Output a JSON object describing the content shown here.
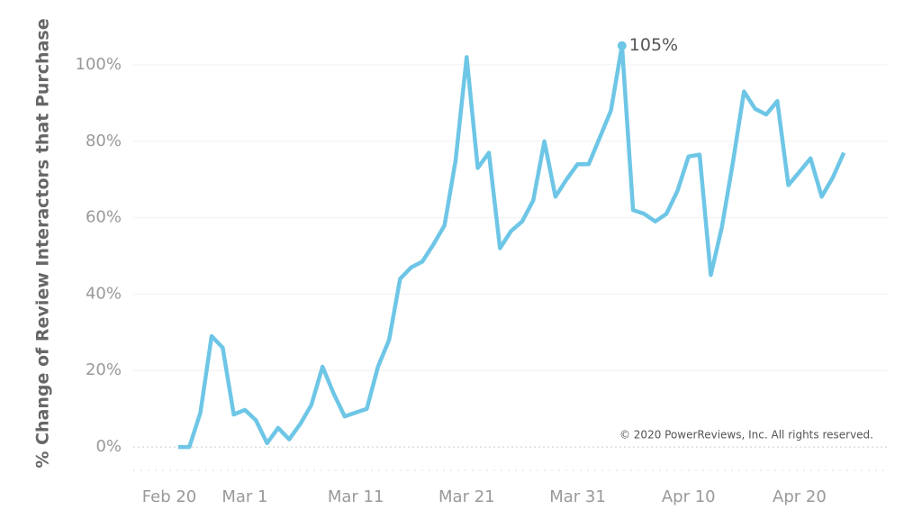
{
  "chart_data": {
    "type": "line",
    "y_label": "% Change of Review Interactors that Purchase",
    "note": "© 2020 PowerReviews, Inc. All rights reserved.",
    "categories": [
      "Feb 20",
      null,
      null,
      null,
      null,
      null,
      "Mar 1",
      null,
      null,
      null,
      null,
      null,
      null,
      null,
      null,
      null,
      "Mar 11",
      null,
      null,
      null,
      null,
      null,
      null,
      null,
      null,
      null,
      "Mar 21",
      null,
      null,
      null,
      null,
      null,
      null,
      null,
      null,
      null,
      "Mar 31",
      null,
      null,
      null,
      null,
      null,
      null,
      null,
      null,
      null,
      "Apr 10",
      null,
      null,
      null,
      null,
      null,
      null,
      null,
      null,
      null,
      "Apr 20",
      null,
      null,
      null,
      null
    ],
    "values": [
      0,
      0,
      9,
      29,
      26,
      8.5,
      9.7,
      7,
      1,
      5,
      2,
      6,
      11,
      21,
      14,
      8,
      9,
      10,
      21,
      28,
      44,
      47,
      48.5,
      53,
      58,
      75,
      102,
      73,
      77,
      52,
      56.5,
      59,
      64.5,
      80,
      65.5,
      70,
      74,
      74,
      81,
      88,
      105,
      62,
      61,
      59,
      61,
      67,
      76,
      76.5,
      45,
      57.5,
      74.5,
      93,
      88.5,
      87,
      90.5,
      68.5,
      72,
      75.5,
      65.5,
      70.5,
      77
    ],
    "value_labels": [
      null,
      null,
      null,
      null,
      null,
      null,
      null,
      null,
      null,
      null,
      null,
      null,
      null,
      null,
      null,
      null,
      null,
      null,
      null,
      null,
      null,
      null,
      null,
      null,
      null,
      null,
      null,
      null,
      null,
      null,
      null,
      null,
      null,
      null,
      null,
      null,
      null,
      null,
      null,
      null,
      "105%",
      null,
      null,
      null,
      null,
      null,
      null,
      null,
      null,
      null,
      null,
      null,
      null,
      null,
      null,
      null,
      null,
      null,
      null,
      null,
      null
    ],
    "color": "#6ec6e6",
    "ylim": [
      -8,
      108
    ],
    "yticks": [
      {
        "value": 0,
        "label": "0%"
      },
      {
        "value": 20,
        "label": "20%"
      },
      {
        "value": 40,
        "label": "40%"
      },
      {
        "value": 60,
        "label": "60%"
      },
      {
        "value": 80,
        "label": "80%"
      },
      {
        "value": 100,
        "label": "100%"
      }
    ],
    "grid": true
  }
}
